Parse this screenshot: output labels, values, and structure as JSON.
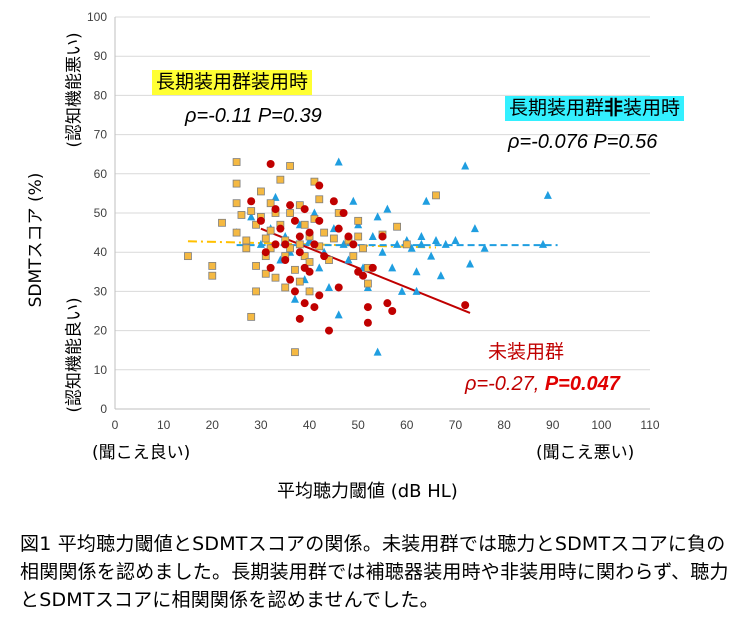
{
  "figure": {
    "xlabel": "平均聴力閾値 (dB HL)",
    "ylabel": "SDMTスコア (%)",
    "x_left_note": "(聞こえ良い)",
    "x_right_note": "(聞こえ悪い)",
    "y_top_note": "(認知機能悪い)",
    "y_bottom_note": "(認知機能良い)",
    "caption": "図1 平均聴力閾値とSDMTスコアの関係。未装用群では聴力とSDMTスコアに負の相関関係を認めました。長期装用群では補聴器装用時や非装用時に関わらず、聴力とSDMTスコアに相関関係を認めませんでした。"
  },
  "annotations": {
    "aided_label": "長期装用群装用時",
    "aided_rho": "ρ=-0.11",
    "aided_p": "P=0.39",
    "unaided_label_a": "長期装用群",
    "unaided_label_b": "非",
    "unaided_label_c": "装用時",
    "unaided_rho": "ρ=-0.076",
    "unaided_p": "P=0.56",
    "nonuser_label": "未装用群",
    "nonuser_rho": "ρ=-0.27,",
    "nonuser_p": "P=0.047"
  },
  "colors": {
    "aided": "#f5b942",
    "aided_edge": "#7f7f7f",
    "unaided": "#1f9ee0",
    "nonuser": "#c00000",
    "aided_trend": "#ffc000",
    "unaided_trend": "#1f9ee0",
    "nonuser_trend": "#c00000",
    "label_yellow": "#ffff33",
    "label_cyan": "#33f0ff"
  },
  "chart_data": {
    "type": "scatter",
    "xlim": [
      0,
      110
    ],
    "ylim": [
      0,
      100
    ],
    "xticks": [
      0,
      10,
      20,
      30,
      40,
      50,
      60,
      70,
      80,
      90,
      100,
      110
    ],
    "yticks": [
      0,
      10,
      20,
      30,
      40,
      50,
      60,
      70,
      80,
      90,
      100
    ],
    "grid": "horizontal",
    "series": [
      {
        "marker": "square",
        "points": [
          [
            15,
            39
          ],
          [
            20,
            36.5
          ],
          [
            20,
            34
          ],
          [
            22,
            47.5
          ],
          [
            25,
            63
          ],
          [
            25,
            57.5
          ],
          [
            25,
            52.5
          ],
          [
            25,
            45
          ],
          [
            26,
            49.5
          ],
          [
            27,
            43
          ],
          [
            27,
            41
          ],
          [
            28,
            50.5
          ],
          [
            28,
            23.5
          ],
          [
            29,
            47
          ],
          [
            29,
            30
          ],
          [
            29,
            36.5
          ],
          [
            30,
            55.5
          ],
          [
            30,
            49
          ],
          [
            31,
            43.5
          ],
          [
            31,
            39
          ],
          [
            31,
            34.5
          ],
          [
            32,
            52.5
          ],
          [
            32,
            45.5
          ],
          [
            32,
            41
          ],
          [
            33,
            33.5
          ],
          [
            33,
            50
          ],
          [
            34,
            58.5
          ],
          [
            34,
            47
          ],
          [
            35,
            43
          ],
          [
            35,
            39
          ],
          [
            35,
            31
          ],
          [
            36,
            62
          ],
          [
            36,
            50
          ],
          [
            36,
            41
          ],
          [
            37,
            35.5
          ],
          [
            37,
            14.5
          ],
          [
            38,
            52
          ],
          [
            38,
            42
          ],
          [
            38,
            32.5
          ],
          [
            39,
            47
          ],
          [
            39,
            39
          ],
          [
            40,
            44
          ],
          [
            40,
            37.5
          ],
          [
            40,
            30
          ],
          [
            41,
            58
          ],
          [
            41,
            48.5
          ],
          [
            42,
            41.5
          ],
          [
            42,
            53.5
          ],
          [
            43,
            45
          ],
          [
            44,
            38
          ],
          [
            45,
            43.5
          ],
          [
            46,
            50
          ],
          [
            48,
            43
          ],
          [
            49,
            39
          ],
          [
            50,
            44
          ],
          [
            50,
            48
          ],
          [
            51,
            41
          ],
          [
            52,
            36
          ],
          [
            52,
            32
          ],
          [
            55,
            44.5
          ],
          [
            58,
            46.5
          ],
          [
            60,
            42
          ],
          [
            66,
            54.5
          ]
        ]
      },
      {
        "marker": "triangle",
        "points": [
          [
            25,
            45
          ],
          [
            28,
            49
          ],
          [
            30,
            42
          ],
          [
            32,
            46
          ],
          [
            33,
            54
          ],
          [
            34,
            38
          ],
          [
            35,
            44
          ],
          [
            36,
            40
          ],
          [
            37,
            28
          ],
          [
            38,
            47
          ],
          [
            39,
            33
          ],
          [
            40,
            43
          ],
          [
            41,
            50
          ],
          [
            42,
            36
          ],
          [
            43,
            40
          ],
          [
            44,
            31
          ],
          [
            45,
            46
          ],
          [
            46,
            63
          ],
          [
            47,
            42
          ],
          [
            48,
            38
          ],
          [
            49,
            53
          ],
          [
            50,
            47
          ],
          [
            51,
            36
          ],
          [
            52,
            31
          ],
          [
            53,
            44
          ],
          [
            54,
            49
          ],
          [
            55,
            40
          ],
          [
            56,
            51
          ],
          [
            57,
            36
          ],
          [
            58,
            42
          ],
          [
            59,
            30
          ],
          [
            60,
            43
          ],
          [
            61,
            41
          ],
          [
            62,
            35
          ],
          [
            63,
            44
          ],
          [
            64,
            53
          ],
          [
            65,
            39
          ],
          [
            66,
            43
          ],
          [
            67,
            34
          ],
          [
            68,
            42
          ],
          [
            70,
            43
          ],
          [
            72,
            62
          ],
          [
            73,
            37
          ],
          [
            74,
            46
          ],
          [
            76,
            41
          ],
          [
            88,
            42
          ],
          [
            89,
            54.5
          ],
          [
            54,
            14.5
          ],
          [
            62,
            30
          ],
          [
            46,
            24
          ],
          [
            40,
            30
          ],
          [
            63,
            42
          ]
        ]
      },
      {
        "marker": "circle",
        "points": [
          [
            28,
            53
          ],
          [
            30,
            48
          ],
          [
            31,
            40
          ],
          [
            32,
            36
          ],
          [
            32,
            62.5
          ],
          [
            33,
            51
          ],
          [
            34,
            46
          ],
          [
            35,
            42
          ],
          [
            35,
            38
          ],
          [
            36,
            52
          ],
          [
            36,
            33
          ],
          [
            37,
            30
          ],
          [
            37,
            48
          ],
          [
            38,
            44
          ],
          [
            38,
            40
          ],
          [
            38,
            23
          ],
          [
            39,
            51
          ],
          [
            39,
            27
          ],
          [
            40,
            45
          ],
          [
            40,
            35
          ],
          [
            41,
            42
          ],
          [
            41,
            26
          ],
          [
            42,
            57
          ],
          [
            42,
            48
          ],
          [
            42,
            29
          ],
          [
            43,
            39
          ],
          [
            44,
            20
          ],
          [
            45,
            53
          ],
          [
            46,
            46
          ],
          [
            47,
            50
          ],
          [
            48,
            44
          ],
          [
            49,
            42
          ],
          [
            50,
            35
          ],
          [
            51,
            34
          ],
          [
            52,
            26
          ],
          [
            52,
            22
          ],
          [
            53,
            36
          ],
          [
            55,
            44
          ],
          [
            56,
            27
          ],
          [
            57,
            25
          ],
          [
            72,
            26.5
          ],
          [
            46,
            31
          ],
          [
            33,
            42
          ],
          [
            39,
            36
          ]
        ]
      }
    ],
    "trendlines": [
      {
        "style": "dashdot",
        "x": [
          15,
          66
        ],
        "y": [
          42.8,
          41.2
        ]
      },
      {
        "style": "dashed",
        "x": [
          25,
          91
        ],
        "y": [
          41.8,
          41.8
        ]
      },
      {
        "style": "solid",
        "x": [
          30,
          73
        ],
        "y": [
          46,
          24.5
        ]
      }
    ]
  }
}
